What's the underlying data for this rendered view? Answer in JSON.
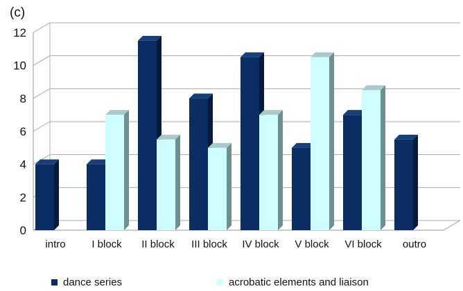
{
  "panel_label": "(c)",
  "chart_data": {
    "type": "bar",
    "categories": [
      "intro",
      "I   block",
      "II  block",
      "III block",
      "IV block",
      "V  block",
      "VI block",
      "outro"
    ],
    "series": [
      {
        "name": "dance series",
        "values": [
          4,
          4,
          11.5,
          8,
          10.5,
          5,
          7,
          5.5
        ],
        "color": "#0a2d63",
        "side_color": "#061a3d",
        "top_color": "#173f7a"
      },
      {
        "name": "acrobatic elements and liaison",
        "values": [
          null,
          7,
          5.5,
          5,
          7,
          10.5,
          8.5,
          null
        ],
        "color": "#cdfdff",
        "side_color": "#6e8f8f",
        "top_color": "#a9c9c9"
      }
    ],
    "yticks": [
      0,
      2,
      4,
      6,
      8,
      10,
      12
    ],
    "ylim": [
      0,
      12
    ],
    "grid": true,
    "legend_position": "bottom"
  }
}
